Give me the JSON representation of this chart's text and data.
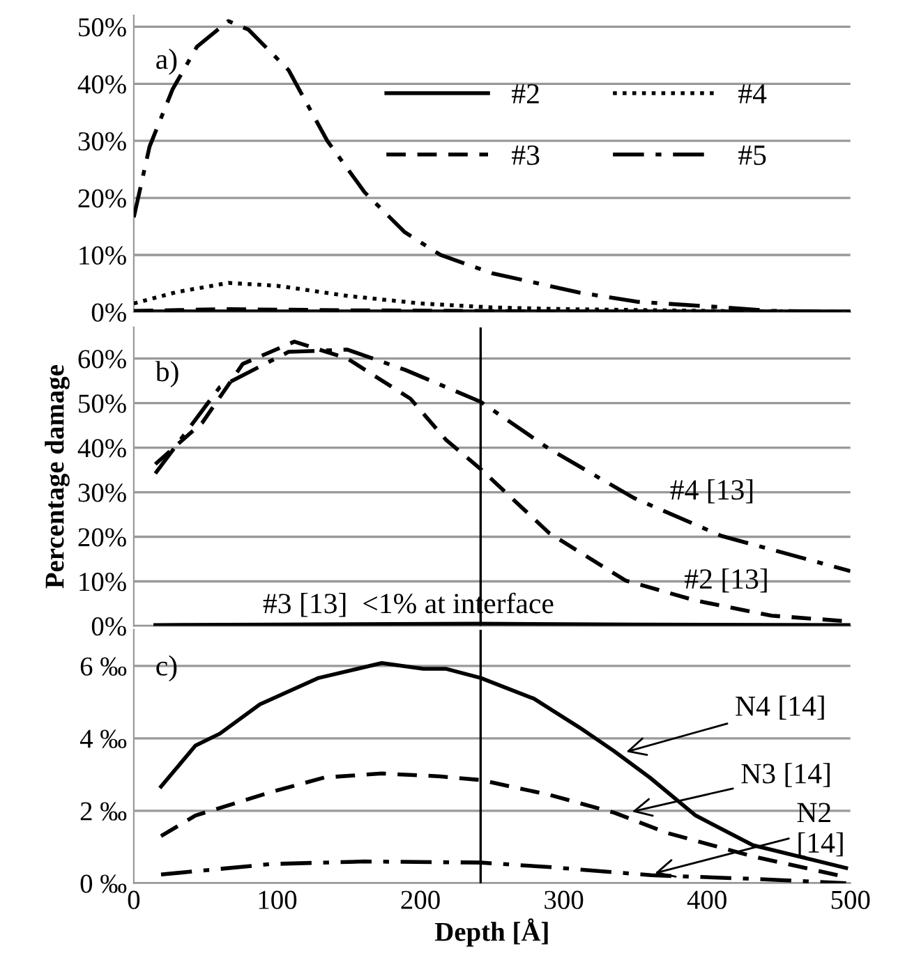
{
  "chart_data": [
    {
      "type": "line",
      "xlim": [
        0,
        500
      ],
      "ylim": [
        0,
        52
      ],
      "yticks": [
        {
          "value": 0,
          "label": "0%"
        },
        {
          "value": 10,
          "label": "10%"
        },
        {
          "value": 20,
          "label": "20%"
        },
        {
          "value": 30,
          "label": "30%"
        },
        {
          "value": 40,
          "label": "40%"
        },
        {
          "value": 50,
          "label": "50%"
        }
      ],
      "tick_labels": "y",
      "grid": "y",
      "legend": "top right",
      "annotations": [
        "a)"
      ],
      "series": [
        {
          "name": "#2",
          "color": "#000000",
          "line_style": "solid",
          "x": [
            0,
            100,
            200,
            300,
            400,
            500
          ],
          "values": [
            0.1,
            0.1,
            0.1,
            0.1,
            0.1,
            0.1
          ]
        },
        {
          "name": "#3",
          "color": "#000000",
          "line_style": "dashed",
          "x": [
            0,
            66,
            150,
            300,
            500
          ],
          "values": [
            0.2,
            0.5,
            0.3,
            0.1,
            0
          ]
        },
        {
          "name": "#4",
          "color": "#000000",
          "line_style": "dotted",
          "x": [
            0,
            30,
            66,
            100,
            150,
            200,
            250,
            300,
            400,
            500
          ],
          "values": [
            1.5,
            3.5,
            5.1,
            4.6,
            2.8,
            1.5,
            0.8,
            0.5,
            0.2,
            0
          ]
        },
        {
          "name": "#5",
          "color": "#000000",
          "line_style": "dashdot",
          "x": [
            0,
            11,
            27,
            44,
            66,
            80,
            108,
            135,
            161,
            189,
            214,
            250,
            311,
            351,
            412,
            445,
            500
          ],
          "values": [
            16.6,
            29,
            39,
            46.5,
            51,
            49.5,
            42.4,
            30,
            21,
            14,
            10,
            6.8,
            3.4,
            1.8,
            0.8,
            0.2,
            0
          ]
        }
      ]
    },
    {
      "type": "line",
      "xlim": [
        0,
        500
      ],
      "ylim": [
        0,
        67
      ],
      "yticks": [
        {
          "value": 0,
          "label": "0%"
        },
        {
          "value": 10,
          "label": "10%"
        },
        {
          "value": 20,
          "label": "20%"
        },
        {
          "value": 30,
          "label": "30%"
        },
        {
          "value": 40,
          "label": "40%"
        },
        {
          "value": 50,
          "label": "50%"
        },
        {
          "value": 60,
          "label": "60%"
        }
      ],
      "tick_labels": "y",
      "grid": "y",
      "ylabel": "Percentage damage",
      "ref_lines": [
        {
          "axis": "x",
          "value": 242,
          "color": "#000000"
        }
      ],
      "annotations": [
        "b)",
        {
          "text": "#4 [13]",
          "x": 374,
          "y": 27
        },
        {
          "text": "#2 [13]",
          "x": 384,
          "y": 7
        },
        {
          "text": "#3 [13]  <1% at interface",
          "x": 90,
          "y": 1.5
        }
      ],
      "series": [
        {
          "color": "#000000",
          "line_style": "dashed",
          "x": [
            15,
            48,
            76,
            112,
            149,
            193,
            218,
            242,
            290,
            343,
            392,
            445,
            500
          ],
          "values": [
            36.3,
            45.7,
            58.8,
            63.8,
            60,
            51,
            41.7,
            35.2,
            20.8,
            10.2,
            5.7,
            2.3,
            1
          ]
        },
        {
          "color": "#000000",
          "line_style": "dashdot",
          "x": [
            15,
            60,
            108,
            149,
            189,
            242,
            290,
            349,
            410,
            500
          ],
          "values": [
            34.2,
            53.6,
            61.5,
            62,
            57.5,
            50.3,
            39.7,
            28.7,
            20.2,
            12.3
          ]
        },
        {
          "color": "#000000",
          "line_style": "solid",
          "x": [
            15,
            100,
            240,
            350,
            500
          ],
          "values": [
            0.2,
            0.3,
            0.5,
            0.3,
            0.2
          ]
        }
      ]
    },
    {
      "type": "line",
      "xlim": [
        0,
        500
      ],
      "xticks": [
        0,
        100,
        200,
        300,
        400,
        500
      ],
      "ylim": [
        0,
        7
      ],
      "yticks": [
        {
          "value": 0,
          "label": "0 ‰"
        },
        {
          "value": 2,
          "label": "2 ‰"
        },
        {
          "value": 4,
          "label": "4 ‰"
        },
        {
          "value": 6,
          "label": "6 ‰"
        }
      ],
      "grid": "y",
      "xlabel": "Depth [Å]",
      "ref_lines": [
        {
          "axis": "x",
          "value": 242,
          "color": "#000000"
        }
      ],
      "annotations": [
        "c)",
        {
          "text": "N4 [14]",
          "x": 341,
          "y": 3.6
        },
        {
          "text": "N3 [14]",
          "x": 345,
          "y": 1.95
        },
        {
          "text": "N2\n[14]",
          "x": 361,
          "y": 0.25
        }
      ],
      "series": [
        {
          "color": "#000000",
          "line_style": "solid",
          "x": [
            19,
            43,
            60,
            88,
            129,
            173,
            202,
            218,
            242,
            279,
            311,
            335,
            360,
            392,
            432,
            497
          ],
          "values": [
            2.67,
            3.8,
            4.13,
            4.94,
            5.67,
            6.08,
            5.92,
            5.92,
            5.67,
            5.1,
            4.3,
            3.65,
            2.92,
            1.87,
            1.05,
            0.42
          ]
        },
        {
          "color": "#000000",
          "line_style": "dashed",
          "x": [
            19,
            43,
            96,
            133,
            173,
            214,
            242,
            290,
            335,
            372,
            432,
            497
          ],
          "values": [
            1.3,
            1.87,
            2.52,
            2.92,
            3.03,
            2.95,
            2.85,
            2.44,
            1.95,
            1.39,
            0.74,
            0.17
          ]
        },
        {
          "color": "#000000",
          "line_style": "dashdot",
          "x": [
            19,
            96,
            161,
            242,
            292,
            361,
            432,
            497
          ],
          "values": [
            0.24,
            0.53,
            0.6,
            0.57,
            0.44,
            0.22,
            0.12,
            0
          ]
        }
      ]
    }
  ]
}
